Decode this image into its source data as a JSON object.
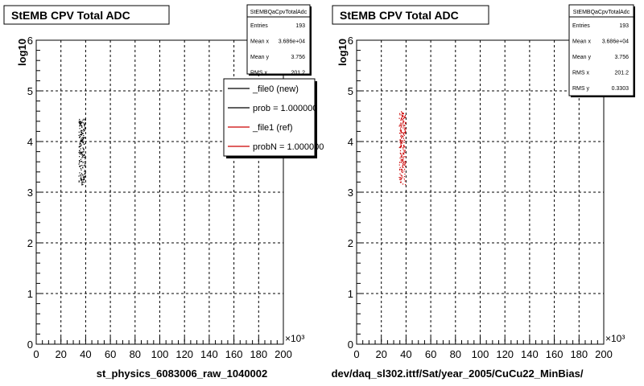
{
  "chart_data": [
    {
      "type": "scatter",
      "title": "StEMB CPV Total ADC",
      "xlabel": "st_physics_6083006_raw_1040002",
      "ylabel": "log10",
      "x_multiplier": "×10³",
      "xlim": [
        0,
        200
      ],
      "ylim": [
        0,
        6
      ],
      "x_ticks": [
        "0",
        "20",
        "40",
        "60",
        "80",
        "100",
        "120",
        "140",
        "160",
        "180",
        "200"
      ],
      "y_ticks": [
        "0",
        "1",
        "2",
        "3",
        "4",
        "5",
        "6"
      ],
      "grid": true,
      "stats": {
        "name": "StEMBQaCpvTotalAdc",
        "rows": [
          {
            "label": "Entries",
            "value": "193"
          },
          {
            "label": "Mean x",
            "value": "3.686e+04"
          },
          {
            "label": "Mean y",
            "value": "3.756"
          },
          {
            "label": "RMS x",
            "value": "201.2"
          }
        ]
      },
      "legend": {
        "placement": "top-right",
        "entries": [
          {
            "label": "_file0 (new)",
            "color": "#000000"
          },
          {
            "label": "prob = 1.000000",
            "color": "#000000"
          },
          {
            "label": "_file1 (ref)",
            "color": "#cc0000"
          },
          {
            "label": "probN = 1.000000",
            "color": "#cc0000"
          }
        ]
      },
      "series": [
        {
          "color": "#000000",
          "x_center": 36.8,
          "x_halfwidth": 2.6,
          "y_min": 3.15,
          "y_max": 4.45,
          "count": 193
        }
      ]
    },
    {
      "type": "scatter",
      "title": "StEMB CPV Total ADC",
      "xlabel": "dev/daq_sl302.ittf/Sat/year_2005/CuCu22_MinBias/",
      "ylabel": "log10",
      "x_multiplier": "×10³",
      "xlim": [
        0,
        200
      ],
      "ylim": [
        0,
        6
      ],
      "x_ticks": [
        "0",
        "20",
        "40",
        "60",
        "80",
        "100",
        "120",
        "140",
        "160",
        "180",
        "200"
      ],
      "y_ticks": [
        "0",
        "1",
        "2",
        "3",
        "4",
        "5",
        "6"
      ],
      "grid": true,
      "stats": {
        "name": "StEMBQaCpvTotalAdc",
        "rows": [
          {
            "label": "Entries",
            "value": "193"
          },
          {
            "label": "Mean x",
            "value": "3.686e+04"
          },
          {
            "label": "Mean y",
            "value": "3.756"
          },
          {
            "label": "RMS x",
            "value": "201.2"
          },
          {
            "label": "RMS y",
            "value": "0.3303"
          }
        ]
      },
      "series": [
        {
          "color": "#cc0000",
          "x_center": 36.8,
          "x_halfwidth": 2.6,
          "y_min": 3.15,
          "y_max": 4.6,
          "count": 193
        }
      ]
    }
  ]
}
